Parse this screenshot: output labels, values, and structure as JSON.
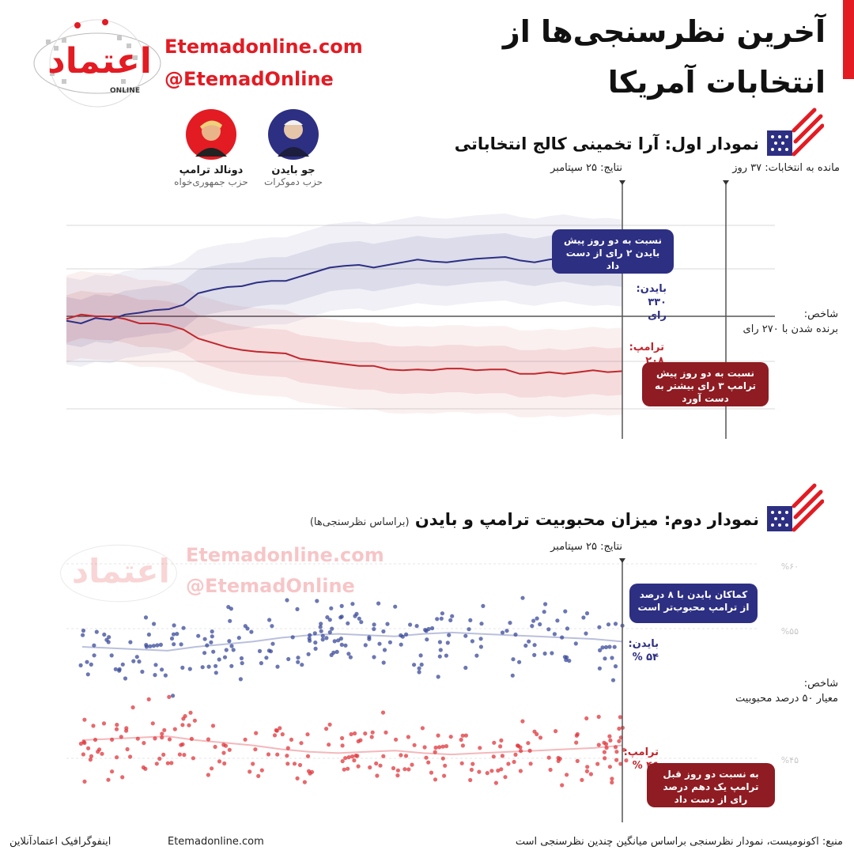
{
  "header": {
    "title_line1": "آخرین نظرسنجی‌ها از",
    "title_line2": "انتخابات آمریکا",
    "website": "Etemadonline.com",
    "handle": "@EtemadOnline",
    "logo_text": "اعتماد",
    "logo_sub": "ONLINE",
    "accent": "#e31b23"
  },
  "candidates": [
    {
      "name": "جو بایدن",
      "party": "حزب دموکرات",
      "color": "#2d2f83",
      "icon": "biden-portrait-icon"
    },
    {
      "name": "دونالد ترامپ",
      "party": "حزب جمهوری‌خواه",
      "color": "#e31b23",
      "icon": "trump-portrait-icon"
    }
  ],
  "chart1": {
    "title": "نمودار اول: آرا تخمینی کالج انتخاباتی",
    "results_label": "نتایج: ۲۵ سپتامبر",
    "days_left_label": "مانده به انتخابات: ۳۷ روز",
    "index_label_title": "شاخص:",
    "index_label_body": "برنده شدن با ۲۷۰ رای",
    "biden_label_1": "بایدن:",
    "biden_label_2": "۳۳۰ رای",
    "trump_label_1": "ترامپ:",
    "trump_label_2": "۲۰۸ رای",
    "note_biden": "نسبت به دو روز پیش بایدن ۲ رای از دست داد",
    "note_trump": "نسبت به دو روز پیش ترامپ ۳ رای بیشتر به دست آورد"
  },
  "chart2": {
    "title": "نمودار دوم: میزان محبوبیت ترامپ و بایدن",
    "subtitle": "(براساس نظرسنجی‌ها)",
    "results_label": "نتایج: ۲۵ سپتامبر",
    "y_ticks": [
      "%۶۰",
      "%۵۵",
      "%۴۵"
    ],
    "index_label_title": "شاخص:",
    "index_label_body": "معیار ۵۰ درصد محبوبیت",
    "biden_label_1": "بایدن:",
    "biden_label_2": "۵۴ %",
    "trump_label_1": "ترامپ:",
    "trump_label_2": "۴۶ %",
    "note_biden": "کماکان بایدن با ۸ درصد از ترامپ محبوب‌تر است",
    "note_trump": "به نسبت دو روز قبل ترامپ یک دهم درصد رای از دست داد",
    "watermark_site": "Etemadonline.com",
    "watermark_handle": "@EtemadOnline"
  },
  "chart_data": [
    {
      "type": "line",
      "title": "نمودار اول: آرا تخمینی کالج انتخاباتی",
      "series": [
        {
          "name": "بایدن",
          "color": "#2d2f83",
          "values": [
            265,
            262,
            268,
            266,
            272,
            274,
            277,
            278,
            283,
            296,
            300,
            303,
            304,
            308,
            310,
            310,
            315,
            320,
            325,
            327,
            328,
            325,
            328,
            331,
            334,
            332,
            331,
            333,
            335,
            336,
            337,
            333,
            331,
            334,
            336,
            333,
            331,
            332,
            330
          ]
        },
        {
          "name": "ترامپ",
          "color": "#c1272d",
          "values": [
            267,
            272,
            270,
            270,
            267,
            262,
            262,
            260,
            255,
            245,
            240,
            235,
            232,
            230,
            229,
            228,
            222,
            220,
            218,
            216,
            214,
            214,
            210,
            209,
            210,
            209,
            211,
            211,
            209,
            210,
            210,
            205,
            205,
            207,
            205,
            207,
            209,
            207,
            208
          ]
        }
      ],
      "ylim": [
        0,
        538
      ],
      "index_line": 270
    },
    {
      "type": "scatter",
      "title": "نمودار دوم: میزان محبوبیت ترامپ و بایدن",
      "series": [
        {
          "name": "بایدن",
          "color": "#3a4a9a",
          "trend": [
            53.6,
            53.5,
            53.4,
            53.3,
            53.6,
            53.8,
            54.0,
            54.3,
            54.5,
            54.6,
            54.5,
            54.4,
            54.6,
            54.7,
            54.6,
            54.5,
            54.4,
            54.3,
            54.2,
            54.0
          ]
        },
        {
          "name": "ترامپ",
          "color": "#e0353b",
          "trend": [
            46.4,
            46.5,
            46.6,
            46.7,
            46.4,
            46.2,
            46.0,
            45.7,
            45.5,
            45.4,
            45.5,
            45.6,
            45.4,
            45.3,
            45.4,
            45.5,
            45.6,
            45.7,
            45.8,
            46.0
          ]
        }
      ],
      "ylim": [
        40,
        60
      ],
      "index_line": 50
    }
  ],
  "footer": {
    "credit": "اینفوگرافیک اعتمادآنلاین",
    "site": "Etemadonline.com",
    "source": "منبع: اکونومیست، نمودار نظرسنجی براساس میانگین چندین نظرسنجی است"
  }
}
